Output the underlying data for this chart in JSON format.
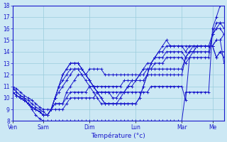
{
  "xlabel": "Température (°c)",
  "bg_color": "#cce8f4",
  "line_color": "#1a1acc",
  "grid_color": "#99ccdd",
  "tick_label_color": "#1a1acc",
  "ylim": [
    8,
    18
  ],
  "yticks": [
    8,
    9,
    10,
    11,
    12,
    13,
    14,
    15,
    16,
    17,
    18
  ],
  "day_labels": [
    "Ven",
    "Sam",
    "Dim",
    "Lun",
    "Mar",
    "Me"
  ],
  "day_positions": [
    0,
    8,
    20,
    32,
    44,
    52
  ],
  "n_points": 56,
  "series": [
    [
      11.0,
      10.5,
      10.2,
      10.0,
      9.5,
      9.0,
      8.5,
      8.2,
      8.0,
      8.0,
      8.0,
      8.0,
      8.0,
      8.0,
      8.0,
      8.0,
      8.0,
      8.0,
      8.0,
      8.0,
      8.0,
      8.0,
      8.0,
      8.0,
      8.0,
      8.0,
      8.0,
      8.0,
      8.0,
      8.0,
      8.0,
      8.0,
      8.0,
      8.0,
      8.0,
      8.0,
      8.0,
      8.0,
      8.0,
      8.0,
      8.0,
      8.0,
      8.0,
      8.0,
      8.0,
      10.5,
      10.5,
      10.5,
      10.5,
      10.5,
      10.5,
      10.5,
      16.0,
      17.0,
      18.0,
      18.5
    ],
    [
      11.0,
      10.8,
      10.5,
      10.2,
      10.0,
      9.8,
      9.5,
      9.2,
      9.0,
      9.0,
      9.0,
      9.0,
      9.0,
      9.0,
      9.5,
      10.0,
      10.0,
      10.0,
      10.0,
      10.0,
      10.0,
      10.0,
      10.5,
      10.5,
      10.5,
      10.5,
      10.5,
      10.5,
      10.5,
      10.5,
      10.5,
      10.5,
      10.5,
      10.5,
      10.5,
      10.5,
      11.0,
      11.0,
      11.0,
      11.0,
      11.0,
      11.0,
      11.0,
      11.0,
      11.0,
      9.8,
      13.5,
      13.5,
      13.5,
      13.5,
      13.5,
      13.5,
      15.5,
      16.5,
      16.5,
      16.0
    ],
    [
      10.8,
      10.5,
      10.2,
      10.0,
      9.8,
      9.5,
      9.2,
      9.0,
      8.8,
      8.5,
      9.0,
      9.5,
      9.5,
      9.5,
      10.0,
      10.5,
      10.5,
      10.5,
      10.5,
      10.5,
      11.0,
      11.0,
      11.0,
      11.0,
      11.0,
      11.0,
      11.0,
      11.0,
      11.0,
      11.5,
      11.5,
      11.5,
      11.5,
      11.5,
      11.5,
      12.0,
      12.0,
      12.0,
      12.0,
      12.0,
      12.0,
      12.0,
      12.0,
      12.0,
      12.0,
      13.5,
      14.0,
      14.0,
      14.0,
      14.0,
      14.0,
      14.0,
      15.5,
      16.0,
      16.0,
      15.5
    ],
    [
      10.5,
      10.2,
      10.0,
      9.8,
      9.5,
      9.2,
      9.0,
      8.8,
      8.5,
      8.5,
      9.0,
      9.5,
      9.5,
      9.5,
      10.5,
      11.0,
      11.5,
      12.0,
      12.0,
      12.0,
      12.5,
      12.5,
      12.5,
      12.5,
      12.0,
      12.0,
      12.0,
      12.0,
      12.0,
      12.0,
      12.0,
      12.0,
      12.0,
      12.0,
      12.5,
      12.5,
      12.5,
      12.5,
      12.5,
      12.5,
      12.5,
      12.5,
      12.5,
      12.5,
      12.5,
      13.5,
      14.0,
      14.5,
      14.5,
      14.5,
      14.5,
      14.5,
      15.5,
      16.0,
      16.5,
      16.5
    ],
    [
      10.5,
      10.2,
      10.0,
      9.8,
      9.5,
      9.2,
      9.0,
      8.8,
      8.5,
      8.5,
      9.0,
      10.0,
      10.5,
      11.0,
      11.5,
      12.0,
      12.5,
      12.5,
      12.5,
      12.0,
      11.5,
      11.0,
      10.5,
      10.5,
      10.5,
      10.5,
      10.0,
      10.0,
      10.5,
      10.5,
      11.0,
      11.5,
      11.5,
      12.0,
      12.0,
      12.5,
      12.5,
      13.0,
      13.0,
      13.0,
      13.5,
      13.5,
      13.5,
      13.5,
      13.5,
      13.0,
      13.5,
      14.0,
      14.5,
      14.5,
      14.5,
      14.5,
      14.5,
      15.0,
      15.0,
      15.5
    ],
    [
      10.5,
      10.2,
      10.0,
      9.8,
      9.5,
      9.2,
      9.0,
      8.8,
      8.5,
      8.5,
      9.0,
      10.0,
      11.0,
      11.5,
      12.0,
      12.5,
      12.5,
      12.5,
      12.0,
      11.5,
      11.0,
      10.5,
      10.0,
      9.5,
      9.5,
      9.5,
      9.5,
      9.5,
      10.0,
      10.5,
      11.0,
      11.0,
      11.5,
      12.0,
      12.5,
      13.0,
      13.0,
      13.5,
      13.5,
      13.5,
      14.0,
      14.0,
      14.0,
      14.0,
      14.0,
      13.5,
      14.0,
      14.0,
      14.5,
      14.5,
      14.5,
      14.5,
      14.5,
      15.0,
      15.0,
      13.0
    ],
    [
      10.5,
      10.2,
      10.0,
      9.8,
      9.5,
      9.2,
      9.0,
      8.8,
      8.5,
      8.5,
      9.0,
      10.0,
      11.0,
      12.0,
      12.5,
      13.0,
      13.0,
      13.0,
      12.5,
      12.0,
      11.5,
      11.0,
      10.5,
      10.0,
      9.5,
      9.5,
      9.5,
      9.5,
      9.5,
      9.5,
      9.5,
      9.5,
      9.5,
      10.0,
      11.0,
      12.0,
      13.0,
      13.5,
      14.0,
      14.0,
      14.5,
      14.5,
      14.5,
      14.5,
      14.5,
      14.0,
      14.5,
      14.5,
      14.5,
      14.5,
      14.5,
      14.5,
      14.5,
      13.5,
      14.0,
      13.5
    ],
    [
      10.5,
      10.2,
      10.0,
      9.8,
      9.5,
      9.2,
      9.0,
      8.8,
      8.5,
      8.5,
      9.0,
      10.0,
      11.0,
      12.0,
      12.5,
      13.0,
      13.0,
      13.0,
      12.5,
      12.0,
      11.5,
      11.0,
      10.5,
      10.0,
      9.5,
      9.5,
      9.5,
      9.5,
      9.5,
      9.5,
      9.5,
      9.5,
      9.5,
      10.0,
      11.0,
      12.0,
      13.0,
      13.5,
      14.0,
      14.5,
      15.0,
      14.5,
      14.5,
      14.5,
      14.5,
      14.5,
      14.5,
      14.5,
      14.5,
      14.5,
      14.5,
      14.5,
      14.5,
      13.5,
      14.0,
      14.0
    ]
  ]
}
